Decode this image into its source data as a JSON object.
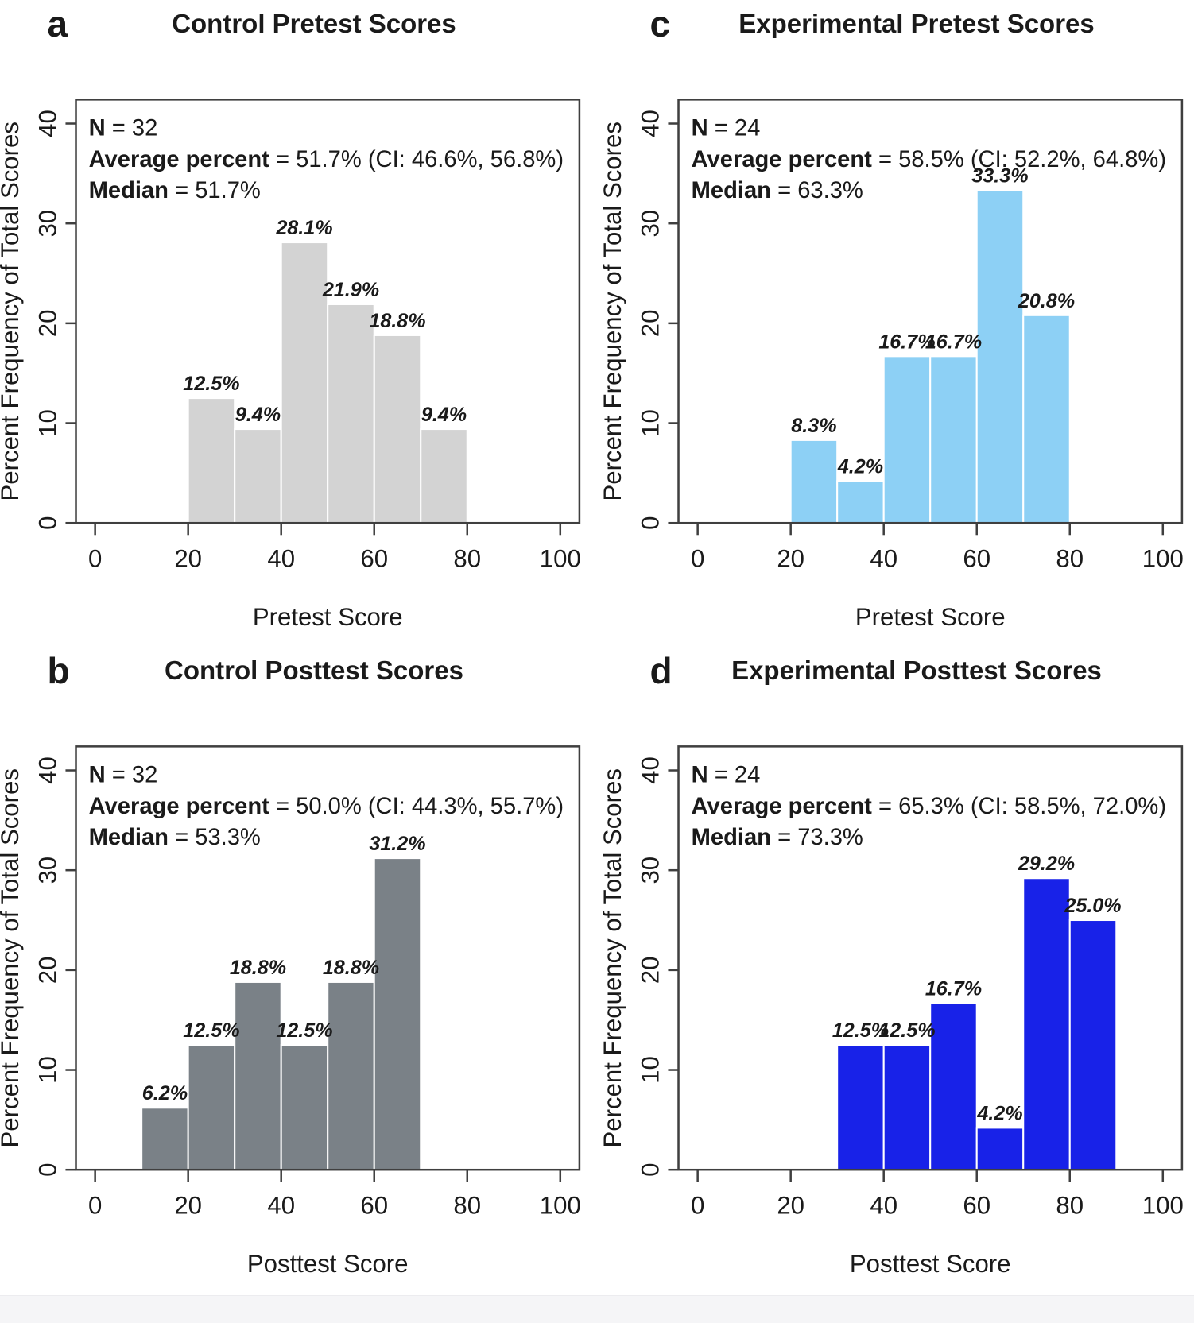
{
  "figure": {
    "y_axis_label": "Percent Frequency of Total Scores",
    "x_ticks": [
      0,
      20,
      40,
      60,
      80,
      100
    ],
    "y_ticks": [
      0,
      10,
      20,
      30,
      40
    ],
    "xlim": [
      0,
      100
    ],
    "ylim": [
      0,
      40
    ],
    "frame_color": "#3f3f3f",
    "text_color": "#1a1a1a"
  },
  "chart_data": [
    {
      "type": "bar",
      "panel_letter": "a",
      "title": "Control Pretest Scores",
      "xlabel": "Pretest Score",
      "ylabel": "Percent Frequency of Total Scores",
      "xlim": [
        0,
        100
      ],
      "ylim": [
        0,
        40
      ],
      "x_ticks": [
        0,
        20,
        40,
        60,
        80,
        100
      ],
      "y_ticks": [
        0,
        10,
        20,
        30,
        40
      ],
      "grid": false,
      "legend": "none",
      "bar_color": "#d3d3d3",
      "bar_border_color": "#ffffff",
      "stats": [
        {
          "label": "N",
          "rest": " = 32"
        },
        {
          "label": "Average percent",
          "rest": " = 51.7% (CI: 46.6%, 56.8%)"
        },
        {
          "label": "Median",
          "rest": " = 51.7%"
        }
      ],
      "bars": [
        {
          "x0": 20,
          "x1": 30,
          "value": 12.5,
          "label": "12.5%"
        },
        {
          "x0": 30,
          "x1": 40,
          "value": 9.4,
          "label": "9.4%"
        },
        {
          "x0": 40,
          "x1": 50,
          "value": 28.1,
          "label": "28.1%"
        },
        {
          "x0": 50,
          "x1": 60,
          "value": 21.9,
          "label": "21.9%"
        },
        {
          "x0": 60,
          "x1": 70,
          "value": 18.8,
          "label": "18.8%"
        },
        {
          "x0": 70,
          "x1": 80,
          "value": 9.4,
          "label": "9.4%"
        }
      ]
    },
    {
      "type": "bar",
      "panel_letter": "c",
      "title": "Experimental Pretest Scores",
      "xlabel": "Pretest Score",
      "ylabel": "Percent Frequency of Total Scores",
      "xlim": [
        0,
        100
      ],
      "ylim": [
        0,
        40
      ],
      "x_ticks": [
        0,
        20,
        40,
        60,
        80,
        100
      ],
      "y_ticks": [
        0,
        10,
        20,
        30,
        40
      ],
      "grid": false,
      "legend": "none",
      "bar_color": "#8dd0f5",
      "bar_border_color": "#ffffff",
      "stats": [
        {
          "label": "N",
          "rest": " = 24"
        },
        {
          "label": "Average percent",
          "rest": " = 58.5% (CI: 52.2%, 64.8%)"
        },
        {
          "label": "Median",
          "rest": " = 63.3%"
        }
      ],
      "bars": [
        {
          "x0": 20,
          "x1": 30,
          "value": 8.3,
          "label": "8.3%"
        },
        {
          "x0": 30,
          "x1": 40,
          "value": 4.2,
          "label": "4.2%"
        },
        {
          "x0": 40,
          "x1": 50,
          "value": 16.7,
          "label": "16.7%"
        },
        {
          "x0": 50,
          "x1": 60,
          "value": 16.7,
          "label": "16.7%"
        },
        {
          "x0": 60,
          "x1": 70,
          "value": 33.3,
          "label": "33.3%"
        },
        {
          "x0": 70,
          "x1": 80,
          "value": 20.8,
          "label": "20.8%"
        }
      ]
    },
    {
      "type": "bar",
      "panel_letter": "b",
      "title": "Control Posttest Scores",
      "xlabel": "Posttest Score",
      "ylabel": "Percent Frequency of Total Scores",
      "xlim": [
        0,
        100
      ],
      "ylim": [
        0,
        40
      ],
      "x_ticks": [
        0,
        20,
        40,
        60,
        80,
        100
      ],
      "y_ticks": [
        0,
        10,
        20,
        30,
        40
      ],
      "grid": false,
      "legend": "none",
      "bar_color": "#7a8187",
      "bar_border_color": "#ffffff",
      "stats": [
        {
          "label": "N",
          "rest": " = 32"
        },
        {
          "label": "Average percent",
          "rest": " = 50.0% (CI: 44.3%, 55.7%)"
        },
        {
          "label": "Median",
          "rest": " = 53.3%"
        }
      ],
      "bars": [
        {
          "x0": 10,
          "x1": 20,
          "value": 6.2,
          "label": "6.2%"
        },
        {
          "x0": 20,
          "x1": 30,
          "value": 12.5,
          "label": "12.5%"
        },
        {
          "x0": 30,
          "x1": 40,
          "value": 18.8,
          "label": "18.8%"
        },
        {
          "x0": 40,
          "x1": 50,
          "value": 12.5,
          "label": "12.5%"
        },
        {
          "x0": 50,
          "x1": 60,
          "value": 18.8,
          "label": "18.8%"
        },
        {
          "x0": 60,
          "x1": 70,
          "value": 31.2,
          "label": "31.2%"
        }
      ]
    },
    {
      "type": "bar",
      "panel_letter": "d",
      "title": "Experimental Posttest Scores",
      "xlabel": "Posttest Score",
      "ylabel": "Percent Frequency of Total Scores",
      "xlim": [
        0,
        100
      ],
      "ylim": [
        0,
        40
      ],
      "x_ticks": [
        0,
        20,
        40,
        60,
        80,
        100
      ],
      "y_ticks": [
        0,
        10,
        20,
        30,
        40
      ],
      "grid": false,
      "legend": "none",
      "bar_color": "#1822e8",
      "bar_border_color": "#ffffff",
      "stats": [
        {
          "label": "N",
          "rest": " = 24"
        },
        {
          "label": "Average percent",
          "rest": " = 65.3% (CI: 58.5%, 72.0%)"
        },
        {
          "label": "Median",
          "rest": " = 73.3%"
        }
      ],
      "bars": [
        {
          "x0": 30,
          "x1": 40,
          "value": 12.5,
          "label": "12.5%"
        },
        {
          "x0": 40,
          "x1": 50,
          "value": 12.5,
          "label": "12.5%"
        },
        {
          "x0": 50,
          "x1": 60,
          "value": 16.7,
          "label": "16.7%"
        },
        {
          "x0": 60,
          "x1": 70,
          "value": 4.2,
          "label": "4.2%"
        },
        {
          "x0": 70,
          "x1": 80,
          "value": 29.2,
          "label": "29.2%"
        },
        {
          "x0": 80,
          "x1": 90,
          "value": 25.0,
          "label": "25.0%"
        }
      ]
    }
  ]
}
